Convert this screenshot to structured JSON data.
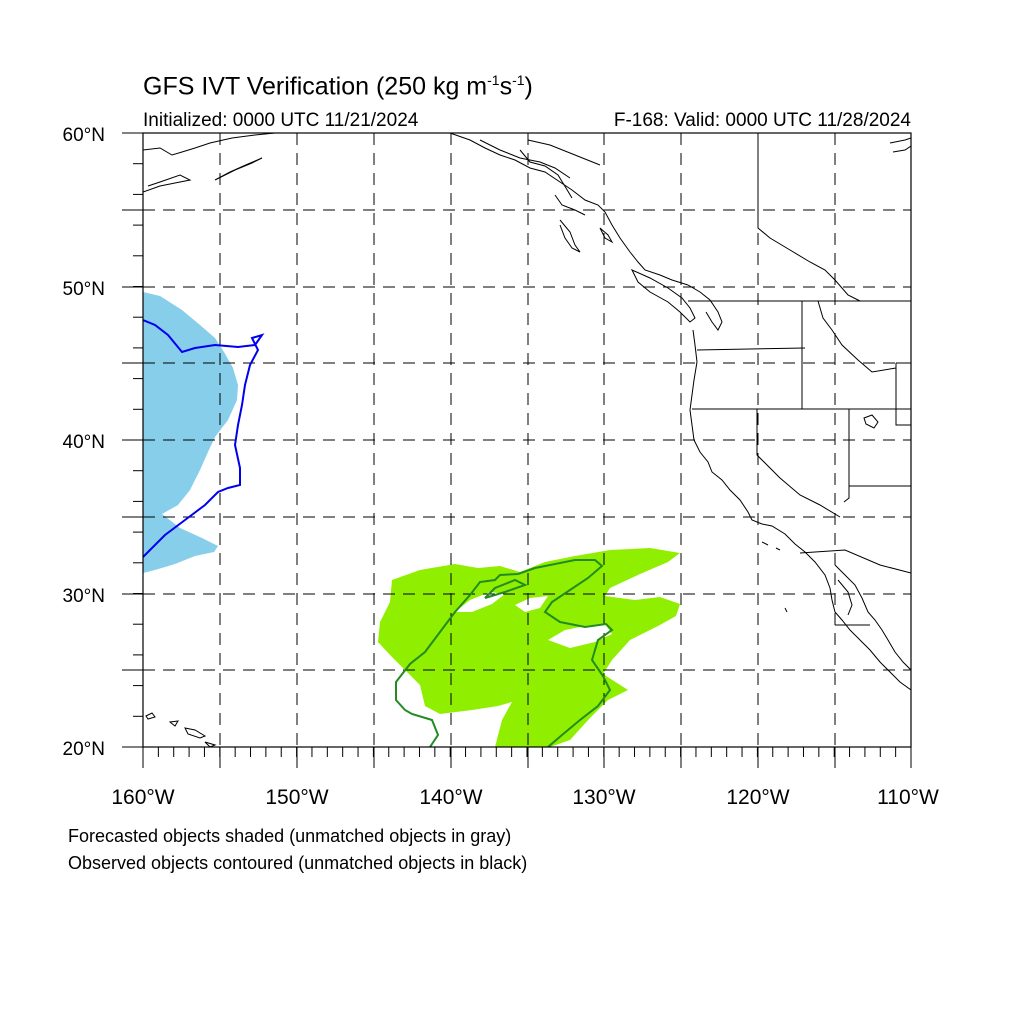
{
  "title": {
    "main": "GFS IVT Verification (250 kg m",
    "sup1": "-1",
    "mid": "s",
    "sup2": "-1",
    "end": ")"
  },
  "initialized": "Initialized: 0000 UTC 11/21/2024",
  "valid": "F-168: Valid: 0000 UTC 11/28/2024",
  "lat_labels": [
    "60°N",
    "50°N",
    "40°N",
    "30°N",
    "20°N"
  ],
  "lon_labels": [
    "160°W",
    "150°W",
    "140°W",
    "130°W",
    "120°W",
    "110°W"
  ],
  "notes": {
    "forecast": "Forecasted objects shaded (unmatched objects in gray)",
    "observed": "Observed objects contoured (unmatched objects in black)"
  },
  "colors": {
    "forecast_object_1": "#87ceeb",
    "forecast_object_2": "#90ee00",
    "observed_object_1": "#0000ee",
    "observed_object_2": "#228b22"
  }
}
